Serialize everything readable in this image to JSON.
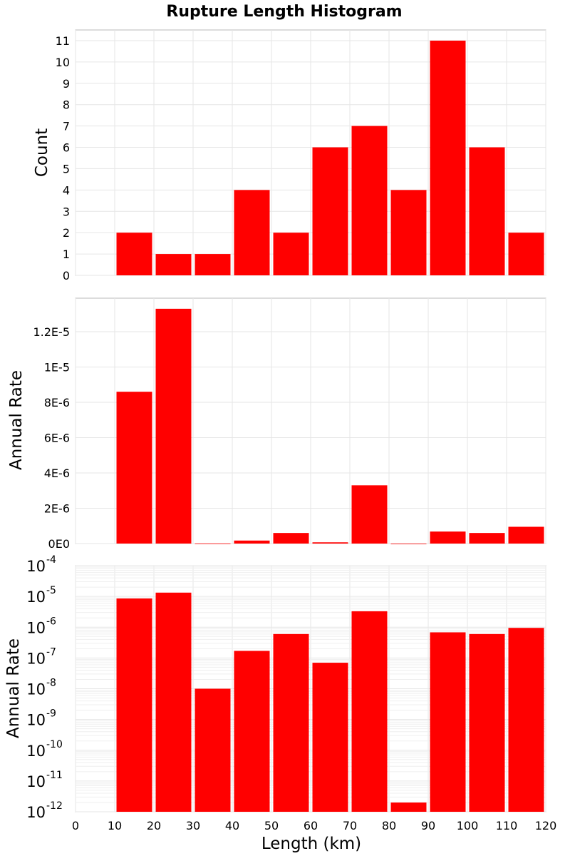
{
  "chart_data": [
    {
      "type": "bar",
      "title": "Rupture Length Histogram",
      "xlabel": "",
      "ylabel": "Count",
      "xlim": [
        0,
        120
      ],
      "ylim": [
        0,
        11.5
      ],
      "x_ticks": [
        0,
        10,
        20,
        30,
        40,
        50,
        60,
        70,
        80,
        90,
        100,
        110,
        120
      ],
      "y_ticks": [
        "0",
        "1",
        "2",
        "3",
        "4",
        "5",
        "6",
        "7",
        "8",
        "9",
        "10",
        "11"
      ],
      "y_tick_values": [
        0,
        1,
        2,
        3,
        4,
        5,
        6,
        7,
        8,
        9,
        10,
        11
      ],
      "bin_width": 10,
      "x": [
        15,
        25,
        35,
        45,
        55,
        65,
        75,
        85,
        95,
        105,
        115
      ],
      "values": [
        2,
        1,
        1,
        4,
        2,
        6,
        7,
        4,
        11,
        6,
        2
      ],
      "color": "#ff0000",
      "grid": true
    },
    {
      "type": "bar",
      "xlabel": "",
      "ylabel": "Annual Rate",
      "xlim": [
        0,
        120
      ],
      "ylim": [
        0,
        1.39e-05
      ],
      "y_ticks": [
        "0E0",
        "2E-6",
        "4E-6",
        "6E-6",
        "8E-6",
        "1E-5",
        "1.2E-5"
      ],
      "y_tick_values": [
        0,
        2e-06,
        4e-06,
        6e-06,
        8e-06,
        1e-05,
        1.2e-05
      ],
      "bin_width": 10,
      "x": [
        15,
        25,
        35,
        45,
        55,
        65,
        75,
        85,
        95,
        105,
        115
      ],
      "values": [
        8.6e-06,
        1.33e-05,
        1e-08,
        1.7e-07,
        6e-07,
        7e-08,
        3.3e-06,
        2e-12,
        6.8e-07,
        6e-07,
        9.5e-07
      ],
      "color": "#ff0000",
      "grid": true
    },
    {
      "type": "bar",
      "xlabel": "Length (km)",
      "ylabel": "Annual Rate",
      "yscale": "log",
      "xlim": [
        0,
        120
      ],
      "ylim": [
        1e-12,
        0.0001
      ],
      "x_ticks": [
        "0",
        "10",
        "20",
        "30",
        "40",
        "50",
        "60",
        "70",
        "80",
        "90",
        "100",
        "110",
        "120"
      ],
      "y_tick_exponents": [
        "-12",
        "-11",
        "-10",
        "-9",
        "-8",
        "-7",
        "-6",
        "-5",
        "-4"
      ],
      "y_tick_base": "10",
      "bin_width": 10,
      "x": [
        15,
        25,
        35,
        45,
        55,
        65,
        75,
        85,
        95,
        105,
        115
      ],
      "values": [
        8.6e-06,
        1.33e-05,
        1e-08,
        1.7e-07,
        6e-07,
        7e-08,
        3.3e-06,
        2e-12,
        6.8e-07,
        6e-07,
        9.5e-07
      ],
      "color": "#ff0000",
      "grid": true
    }
  ]
}
